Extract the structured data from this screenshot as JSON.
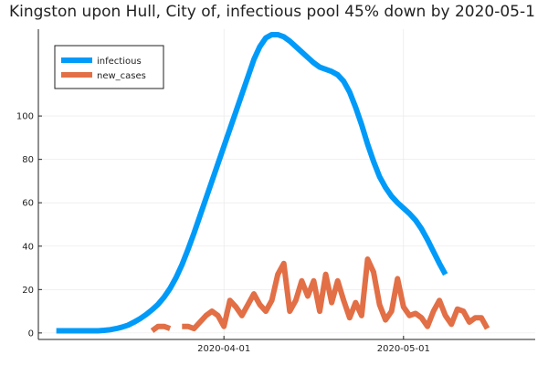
{
  "chart_data": {
    "type": "line",
    "title": "Kingston upon Hull, City of, infectious pool 45% down by 2020-05-1",
    "xlabel": "",
    "ylabel": "",
    "x_start": "2020-03-04",
    "x_range": [
      "2020-03-01",
      "2020-05-23"
    ],
    "ylim": [
      -3,
      140
    ],
    "x_ticks": [
      {
        "date": "2020-04-01",
        "label": "2020-04-01"
      },
      {
        "date": "2020-05-01",
        "label": "2020-05-01"
      }
    ],
    "y_ticks": [
      0,
      20,
      40,
      60,
      80,
      100
    ],
    "grid": true,
    "legend_position": "top-left",
    "series": [
      {
        "name": "infectious",
        "color": "#009af9",
        "values": [
          1,
          1,
          1,
          1,
          1,
          1,
          1,
          1,
          1.2,
          1.5,
          2,
          2.7,
          3.6,
          5,
          6.6,
          8.5,
          10.7,
          13.2,
          16.5,
          20.5,
          25.5,
          31.5,
          38.5,
          46,
          54,
          62,
          70,
          78,
          86,
          94,
          102,
          110,
          118,
          126,
          132,
          136,
          137.5,
          137.5,
          136.5,
          134.5,
          132,
          129.5,
          127,
          124.5,
          122.5,
          121.5,
          120.5,
          119,
          116,
          111,
          104,
          96,
          87,
          79,
          72,
          67,
          63,
          60,
          57.5,
          55,
          52,
          48,
          43,
          37.5,
          32,
          27
        ]
      },
      {
        "name": "new_cases",
        "color": "#e26f46",
        "values": [
          null,
          null,
          null,
          null,
          null,
          null,
          null,
          null,
          null,
          null,
          null,
          null,
          null,
          null,
          null,
          null,
          1,
          3,
          3,
          2,
          null,
          3,
          3,
          2,
          5,
          8,
          10,
          8,
          3,
          15,
          12,
          8,
          13,
          18,
          13,
          10,
          15,
          27,
          32,
          10,
          15,
          24,
          17,
          24,
          10,
          27,
          14,
          24,
          15,
          7,
          14,
          8,
          34,
          28,
          13,
          6,
          10,
          25,
          12,
          8,
          9,
          7,
          3,
          10,
          15,
          8,
          4,
          11,
          10,
          5,
          7,
          7,
          2
        ]
      }
    ]
  }
}
